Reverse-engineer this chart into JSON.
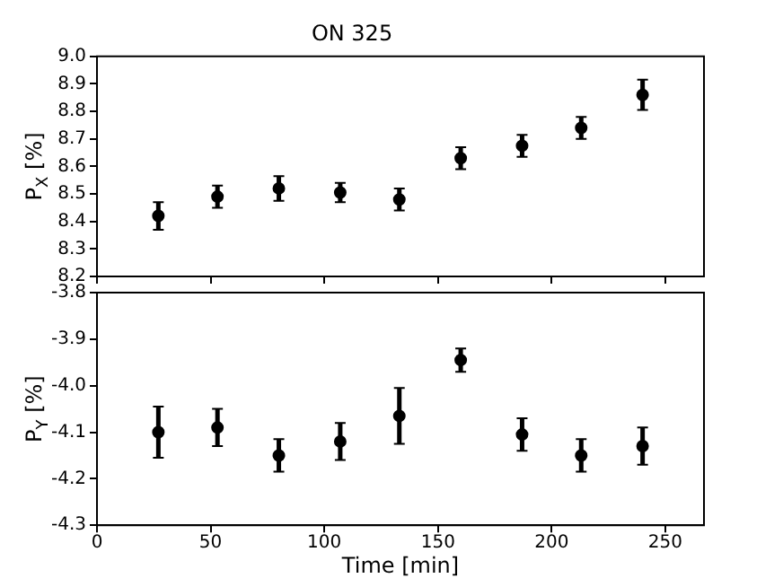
{
  "chart_data": [
    {
      "type": "scatter",
      "title": "ON 325",
      "ylabel": "P$_{X}$ [%]",
      "x": [
        27,
        53,
        80,
        107,
        133,
        160,
        187,
        213,
        240
      ],
      "values": [
        8.42,
        8.49,
        8.52,
        8.505,
        8.48,
        8.63,
        8.675,
        8.74,
        8.86
      ],
      "errors": [
        0.05,
        0.04,
        0.045,
        0.035,
        0.04,
        0.04,
        0.04,
        0.04,
        0.055
      ],
      "color": "#000000",
      "marker": "circle",
      "xlim": [
        0,
        267
      ],
      "xticks": [
        0,
        50,
        100,
        150,
        200,
        250
      ],
      "ylim": [
        8.2,
        9.0
      ],
      "yticks": [
        8.2,
        8.3,
        8.4,
        8.5,
        8.6,
        8.7,
        8.8,
        8.9,
        {
          "value": 9,
          "label": "9.0"
        }
      ],
      "tick_labels": "y",
      "grid": false
    },
    {
      "type": "scatter",
      "xlabel": "Time [min]",
      "ylabel": "P$_{Y}$ [%]",
      "x": [
        27,
        53,
        80,
        107,
        133,
        160,
        187,
        213,
        240
      ],
      "values": [
        -4.1,
        -4.09,
        -4.15,
        -4.12,
        -4.065,
        -3.945,
        -4.105,
        -4.15,
        -4.13
      ],
      "errors": [
        0.055,
        0.04,
        0.035,
        0.04,
        0.06,
        0.025,
        0.035,
        0.035,
        0.04
      ],
      "color": "#000000",
      "marker": "circle",
      "xlim": [
        0,
        267
      ],
      "xticks": [
        0,
        50,
        100,
        150,
        200,
        250
      ],
      "ylim": [
        -4.3,
        -3.8
      ],
      "yticks": [
        -4.3,
        -4.2,
        -4.1,
        {
          "value": -4,
          "label": "-4.0"
        },
        -3.9,
        -3.8
      ],
      "grid": false
    }
  ]
}
